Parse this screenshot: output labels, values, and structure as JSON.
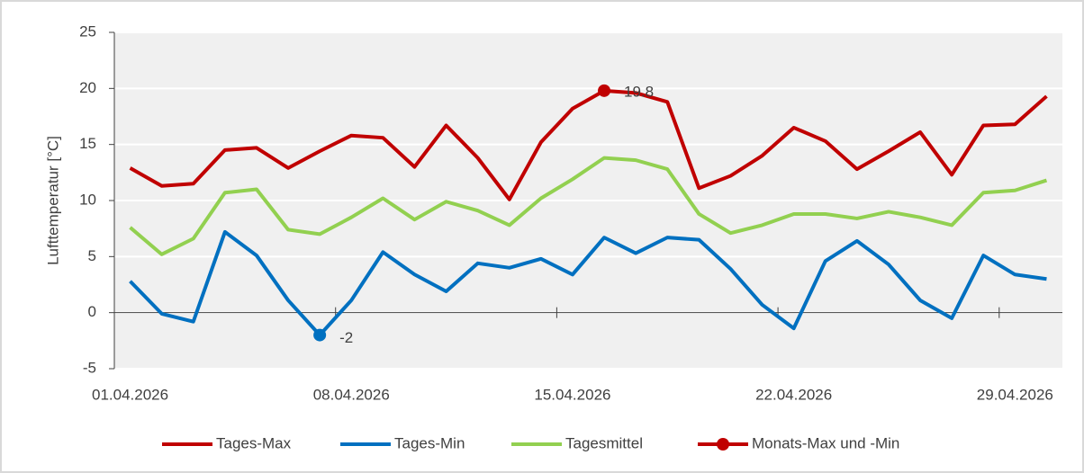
{
  "chart_data": {
    "type": "line",
    "y_label": "Lufttemperatur [°C]",
    "categories": [
      "01.04.2026",
      null,
      null,
      null,
      null,
      null,
      null,
      "08.04.2026",
      null,
      null,
      null,
      null,
      null,
      null,
      "15.04.2026",
      null,
      null,
      null,
      null,
      null,
      null,
      "22.04.2026",
      null,
      null,
      null,
      null,
      null,
      null,
      "29.04.2026",
      null
    ],
    "series": [
      {
        "name": "Tages-Max",
        "color": "#c00000",
        "values": [
          12.9,
          11.3,
          11.5,
          14.5,
          14.7,
          12.9,
          14.4,
          15.8,
          15.6,
          13.0,
          16.7,
          13.8,
          10.1,
          15.2,
          18.2,
          19.8,
          19.6,
          18.8,
          11.1,
          12.2,
          14.0,
          16.5,
          15.3,
          12.8,
          14.4,
          16.1,
          12.3,
          16.7,
          16.8,
          19.3
        ]
      },
      {
        "name": "Tages-Min",
        "color": "#0070c0",
        "values": [
          2.8,
          -0.1,
          -0.8,
          7.2,
          5.1,
          1.1,
          -2.0,
          1.1,
          5.4,
          3.4,
          1.9,
          4.4,
          4.0,
          4.8,
          3.4,
          6.7,
          5.3,
          6.7,
          6.5,
          3.9,
          0.7,
          -1.4,
          4.6,
          6.4,
          4.3,
          1.1,
          -0.5,
          5.1,
          3.4,
          3.0
        ]
      },
      {
        "name": "Tagesmittel",
        "color": "#92d050",
        "values": [
          7.6,
          5.2,
          6.6,
          10.7,
          11.0,
          7.4,
          7.0,
          8.5,
          10.2,
          8.3,
          9.9,
          9.1,
          7.8,
          10.2,
          11.9,
          13.8,
          13.6,
          12.8,
          8.8,
          7.1,
          7.8,
          8.8,
          8.8,
          8.4,
          9.0,
          8.5,
          7.8,
          10.7,
          10.9,
          11.8
        ]
      },
      {
        "name": "Monats-Max und -Min",
        "color": "#c00000",
        "markers": true,
        "data_labels": true,
        "point_colors": [
          null,
          null,
          null,
          null,
          null,
          null,
          "#0070c0",
          null,
          null,
          null,
          null,
          null,
          null,
          null,
          null,
          "#c00000",
          null,
          null,
          null,
          null,
          null,
          null,
          null,
          null,
          null,
          null,
          null,
          null,
          null,
          null
        ],
        "values": [
          null,
          null,
          null,
          null,
          null,
          null,
          -2,
          null,
          null,
          null,
          null,
          null,
          null,
          null,
          null,
          19.8,
          null,
          null,
          null,
          null,
          null,
          null,
          null,
          null,
          null,
          null,
          null,
          null,
          null,
          null
        ]
      }
    ],
    "ylim": [
      -5,
      25
    ],
    "yticks": [
      -5,
      0,
      5,
      10,
      15,
      20,
      25
    ],
    "grid": true,
    "plot_background": "#f0f0f0",
    "legend": "bottom"
  }
}
